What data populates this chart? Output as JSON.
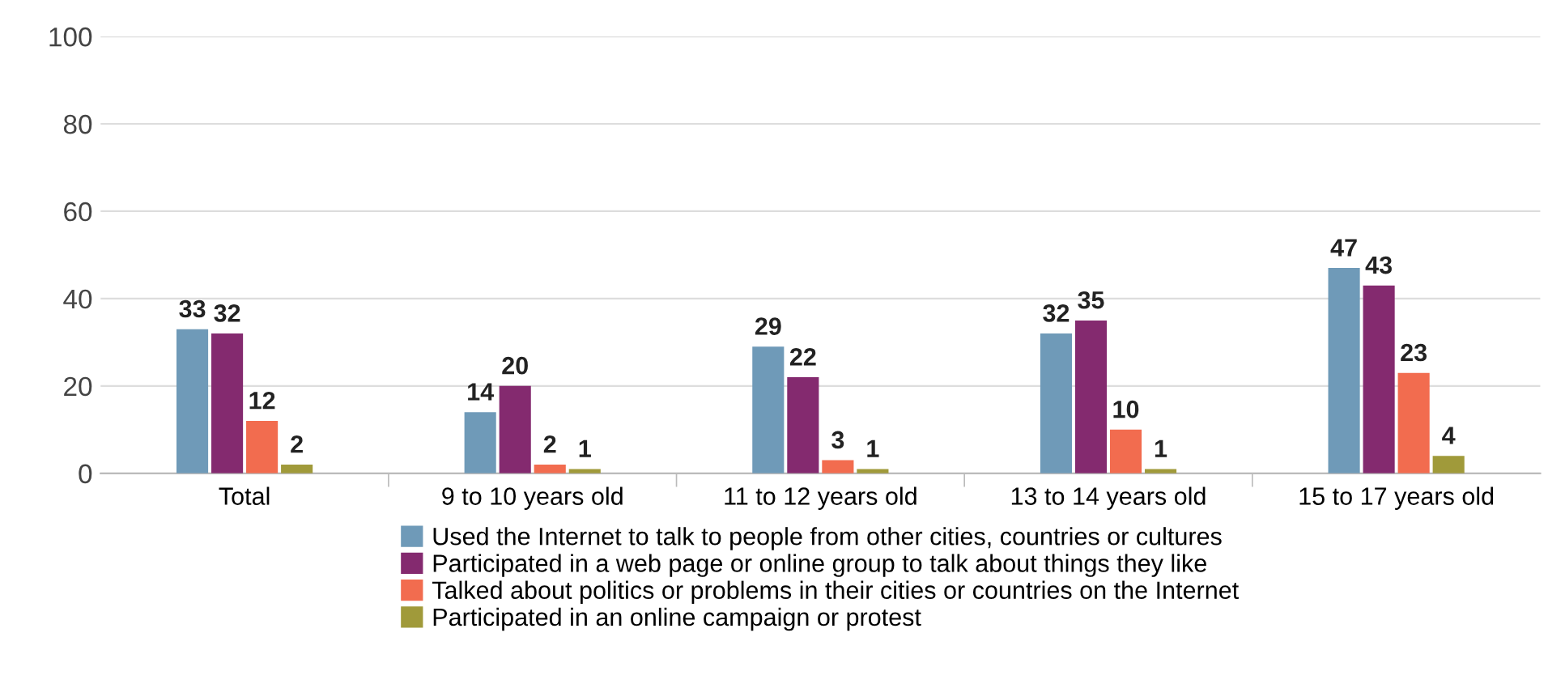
{
  "chart_data": {
    "type": "bar",
    "categories": [
      "Total",
      "9 to 10 years old",
      "11 to 12 years old",
      "13 to 14 years old",
      "15 to 17 years old"
    ],
    "series": [
      {
        "name": "Used the Internet to talk to people from other cities, countries or cultures",
        "color": "#6f9ab8",
        "values": [
          33,
          14,
          29,
          32,
          47
        ]
      },
      {
        "name": "Participated in a web page or online group to talk about things they like",
        "color": "#842a6f",
        "values": [
          32,
          20,
          22,
          35,
          43
        ]
      },
      {
        "name": "Talked about politics or problems in their cities or countries on the Internet",
        "color": "#f26c4f",
        "values": [
          12,
          2,
          3,
          10,
          23
        ]
      },
      {
        "name": "Participated in an online campaign or protest",
        "color": "#a09a3a",
        "values": [
          2,
          1,
          1,
          1,
          4
        ]
      }
    ],
    "ylim": [
      0,
      100
    ],
    "yticks": [
      0,
      20,
      40,
      60,
      80,
      100
    ],
    "grid": "y",
    "legend": "bottom",
    "data_labels": true
  }
}
